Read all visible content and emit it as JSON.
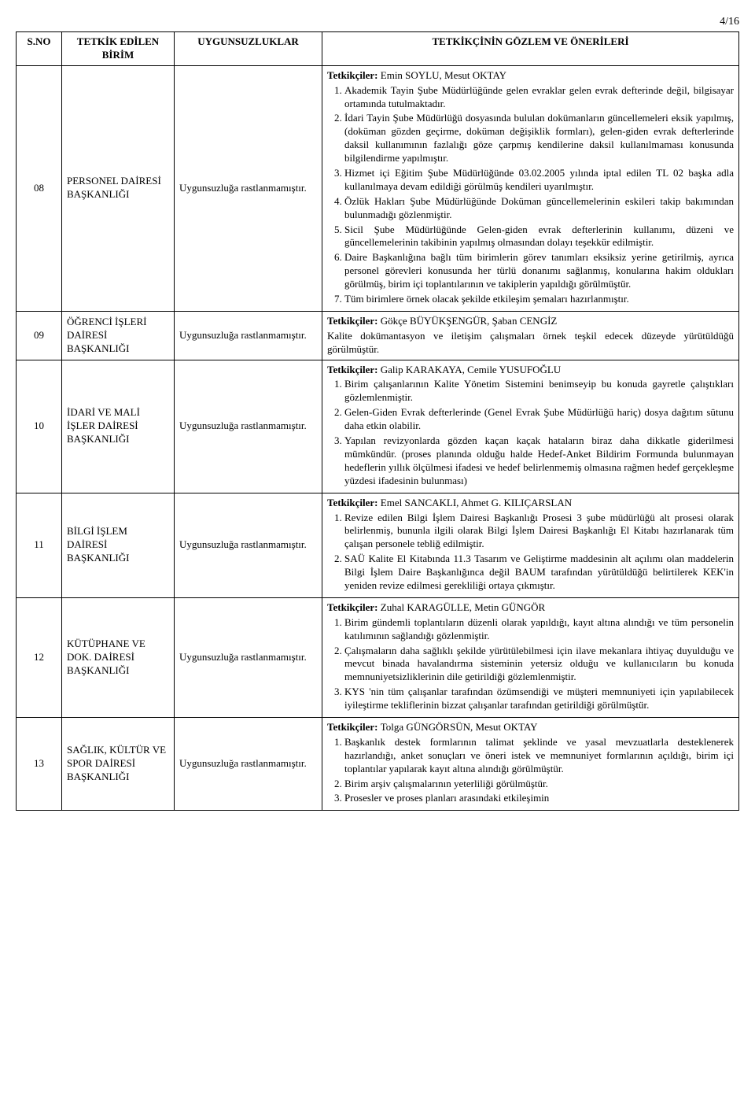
{
  "page_number": "4/16",
  "headers": {
    "sno": "S.NO",
    "birim": "TETKİK EDİLEN BİRİM",
    "uyg": "UYGUNSUZLUKLAR",
    "gozlem": "TETKİKÇİNİN GÖZLEM VE ÖNERİLERİ"
  },
  "uygunsuzluk_text": "Uygunsuzluğa rastlanmamıştır.",
  "rows": [
    {
      "sno": "08",
      "birim": "PERSONEL DAİRESİ BAŞKANLIĞI",
      "tetkikciler_label": "Tetkikçiler: ",
      "tetkikciler_names": "Emin SOYLU, Mesut OKTAY",
      "items": [
        "Akademik Tayin Şube Müdürlüğünde gelen evraklar gelen evrak defterinde değil, bilgisayar ortamında tutulmaktadır.",
        "İdari Tayin Şube Müdürlüğü dosyasında bululan dokümanların güncellemeleri eksik yapılmış, (doküman gözden geçirme, doküman değişiklik formları), gelen-giden evrak defterlerinde daksil kullanımının fazlalığı göze çarpmış kendilerine daksil kullanılmaması konusunda bilgilendirme yapılmıştır.",
        "Hizmet içi Eğitim Şube Müdürlüğünde 03.02.2005 yılında iptal edilen TL 02 başka adla kullanılmaya devam edildiği görülmüş kendileri uyarılmıştır.",
        "Özlük Hakları Şube Müdürlüğünde Doküman güncellemelerinin eskileri takip bakımından bulunmadığı gözlenmiştir.",
        "Sicil Şube Müdürlüğünde Gelen-giden evrak defterlerinin kullanımı, düzeni ve güncellemelerinin takibinin yapılmış olmasından dolayı teşekkür edilmiştir.",
        "Daire Başkanlığına bağlı tüm birimlerin görev tanımları eksiksiz yerine getirilmiş, ayrıca personel görevleri konusunda her türlü donanımı sağlanmış, konularına hakim oldukları görülmüş, birim içi toplantılarının ve takiplerin yapıldığı görülmüştür.",
        "Tüm birimlere örnek olacak şekilde etkileşim şemaları hazırlanmıştır."
      ]
    },
    {
      "sno": "09",
      "birim": "ÖĞRENCİ İŞLERİ DAİRESİ BAŞKANLIĞI",
      "tetkikciler_label": "Tetkikçiler:  ",
      "tetkikciler_names": "Gökçe BÜYÜKŞENGÜR, Şaban CENGİZ",
      "paragraph": "Kalite dokümantasyon ve iletişim çalışmaları örnek teşkil edecek düzeyde yürütüldüğü görülmüştür."
    },
    {
      "sno": "10",
      "birim": "İDARİ VE MALİ İŞLER DAİRESİ BAŞKANLIĞI",
      "tetkikciler_label": "Tetkikçiler: ",
      "tetkikciler_names": "Galip KARAKAYA, Cemile YUSUFOĞLU",
      "items": [
        "Birim çalışanlarının Kalite Yönetim Sistemini benimseyip bu konuda gayretle çalıştıkları gözlemlenmiştir.",
        "Gelen-Giden Evrak defterlerinde (Genel Evrak Şube Müdürlüğü hariç) dosya dağıtım sütunu daha etkin olabilir.",
        "Yapılan revizyonlarda gözden kaçan kaçak hataların biraz daha dikkatle giderilmesi mümkündür. (proses planında olduğu halde Hedef-Anket Bildirim Formunda bulunmayan hedeflerin yıllık ölçülmesi ifadesi ve hedef belirlenmemiş olmasına rağmen hedef gerçekleşme yüzdesi ifadesinin bulunması)"
      ]
    },
    {
      "sno": "11",
      "birim": "BİLGİ İŞLEM DAİRESİ BAŞKANLIĞI",
      "tetkikciler_label": "Tetkikçiler: ",
      "tetkikciler_names": "Emel SANCAKLI, Ahmet G. KILIÇARSLAN",
      "items": [
        "Revize edilen Bilgi İşlem Dairesi Başkanlığı Prosesi 3 şube müdürlüğü alt prosesi olarak belirlenmiş, bununla ilgili olarak Bilgi İşlem Dairesi Başkanlığı El Kitabı hazırlanarak tüm çalışan personele tebliğ edilmiştir.",
        "SAÜ Kalite El Kitabında 11.3 Tasarım ve Geliştirme maddesinin alt açılımı olan maddelerin Bilgi İşlem Daire Başkanlığınca değil BAUM tarafından yürütüldüğü belirtilerek KEK'in yeniden revize edilmesi gerekliliği ortaya çıkmıştır."
      ]
    },
    {
      "sno": "12",
      "birim": "KÜTÜPHANE VE DOK. DAİRESİ BAŞKANLIĞI",
      "tetkikciler_label": "Tetkikçiler: ",
      "tetkikciler_names": "Zuhal KARAGÜLLE, Metin GÜNGÖR",
      "items": [
        "Birim gündemli toplantıların düzenli olarak yapıldığı, kayıt altına alındığı ve tüm personelin katılımının sağlandığı gözlenmiştir.",
        "Çalışmaların daha sağlıklı şekilde yürütülebilmesi için ilave mekanlara ihtiyaç duyulduğu ve mevcut binada havalandırma sisteminin yetersiz olduğu ve kullanıcıların bu konuda memnuniyetsizliklerinin dile getirildiği gözlemlenmiştir.",
        "KYS 'nin tüm çalışanlar tarafından özümsendiği ve müşteri memnuniyeti için yapılabilecek iyileştirme tekliflerinin bizzat çalışanlar tarafından getirildiği görülmüştür."
      ]
    },
    {
      "sno": "13",
      "birim": "SAĞLIK, KÜLTÜR VE SPOR DAİRESİ BAŞKANLIĞI",
      "tetkikciler_label": "Tetkikçiler:  ",
      "tetkikciler_names": "Tolga GÜNGÖRSÜN, Mesut OKTAY",
      "items": [
        "Başkanlık destek formlarının talimat şeklinde ve yasal mevzuatlarla desteklenerek hazırlandığı, anket sonuçları ve öneri istek ve memnuniyet formlarının açıldığı, birim içi toplantılar yapılarak kayıt altına alındığı görülmüştür.",
        "Birim arşiv çalışmalarının yeterliliği görülmüştür.",
        "Prosesler ve proses planları arasındaki etkileşimin"
      ]
    }
  ]
}
